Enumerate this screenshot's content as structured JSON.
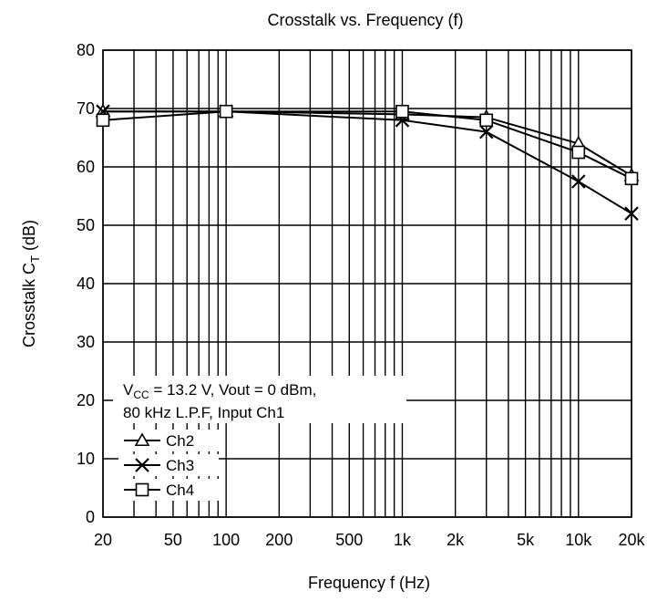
{
  "chart_data": {
    "type": "line",
    "title": "Crosstalk vs. Frequency (f)",
    "xlabel": "Frequency  f  (Hz)",
    "ylabel_main": "Crosstalk  C",
    "ylabel_sub": "T",
    "ylabel_unit": "  (dB)",
    "x_scale": "log",
    "xlim": [
      20,
      20000
    ],
    "ylim": [
      0,
      80
    ],
    "grid": true,
    "x_ticks": [
      20,
      50,
      100,
      200,
      500,
      1000,
      2000,
      5000,
      10000,
      20000
    ],
    "x_tick_labels": [
      "20",
      "50",
      "100",
      "200",
      "500",
      "1k",
      "2k",
      "5k",
      "10k",
      "20k"
    ],
    "y_ticks": [
      0,
      10,
      20,
      30,
      40,
      50,
      60,
      70,
      80
    ],
    "y_tick_labels": [
      "0",
      "10",
      "20",
      "30",
      "40",
      "50",
      "60",
      "70",
      "80"
    ],
    "annotation": {
      "line1_prefix": "V",
      "line1_sub": "CC",
      "line1_rest": " = 13.2 V, Vout = 0 dBm,",
      "line2": "80 kHz L.P.F, Input Ch1"
    },
    "legend_position": "bottom-left",
    "series": [
      {
        "name": "Ch2",
        "marker": "triangle",
        "x": [
          20,
          100,
          1000,
          3000,
          10000,
          20000
        ],
        "y": [
          69.5,
          69.5,
          69,
          68.5,
          64,
          58.5
        ]
      },
      {
        "name": "Ch3",
        "marker": "x",
        "x": [
          20,
          100,
          1000,
          3000,
          10000,
          20000
        ],
        "y": [
          69.5,
          69.5,
          68,
          66,
          57.5,
          52
        ]
      },
      {
        "name": "Ch4",
        "marker": "square",
        "x": [
          20,
          100,
          1000,
          3000,
          10000,
          20000
        ],
        "y": [
          68,
          69.5,
          69.5,
          68,
          62.5,
          58
        ]
      }
    ]
  }
}
